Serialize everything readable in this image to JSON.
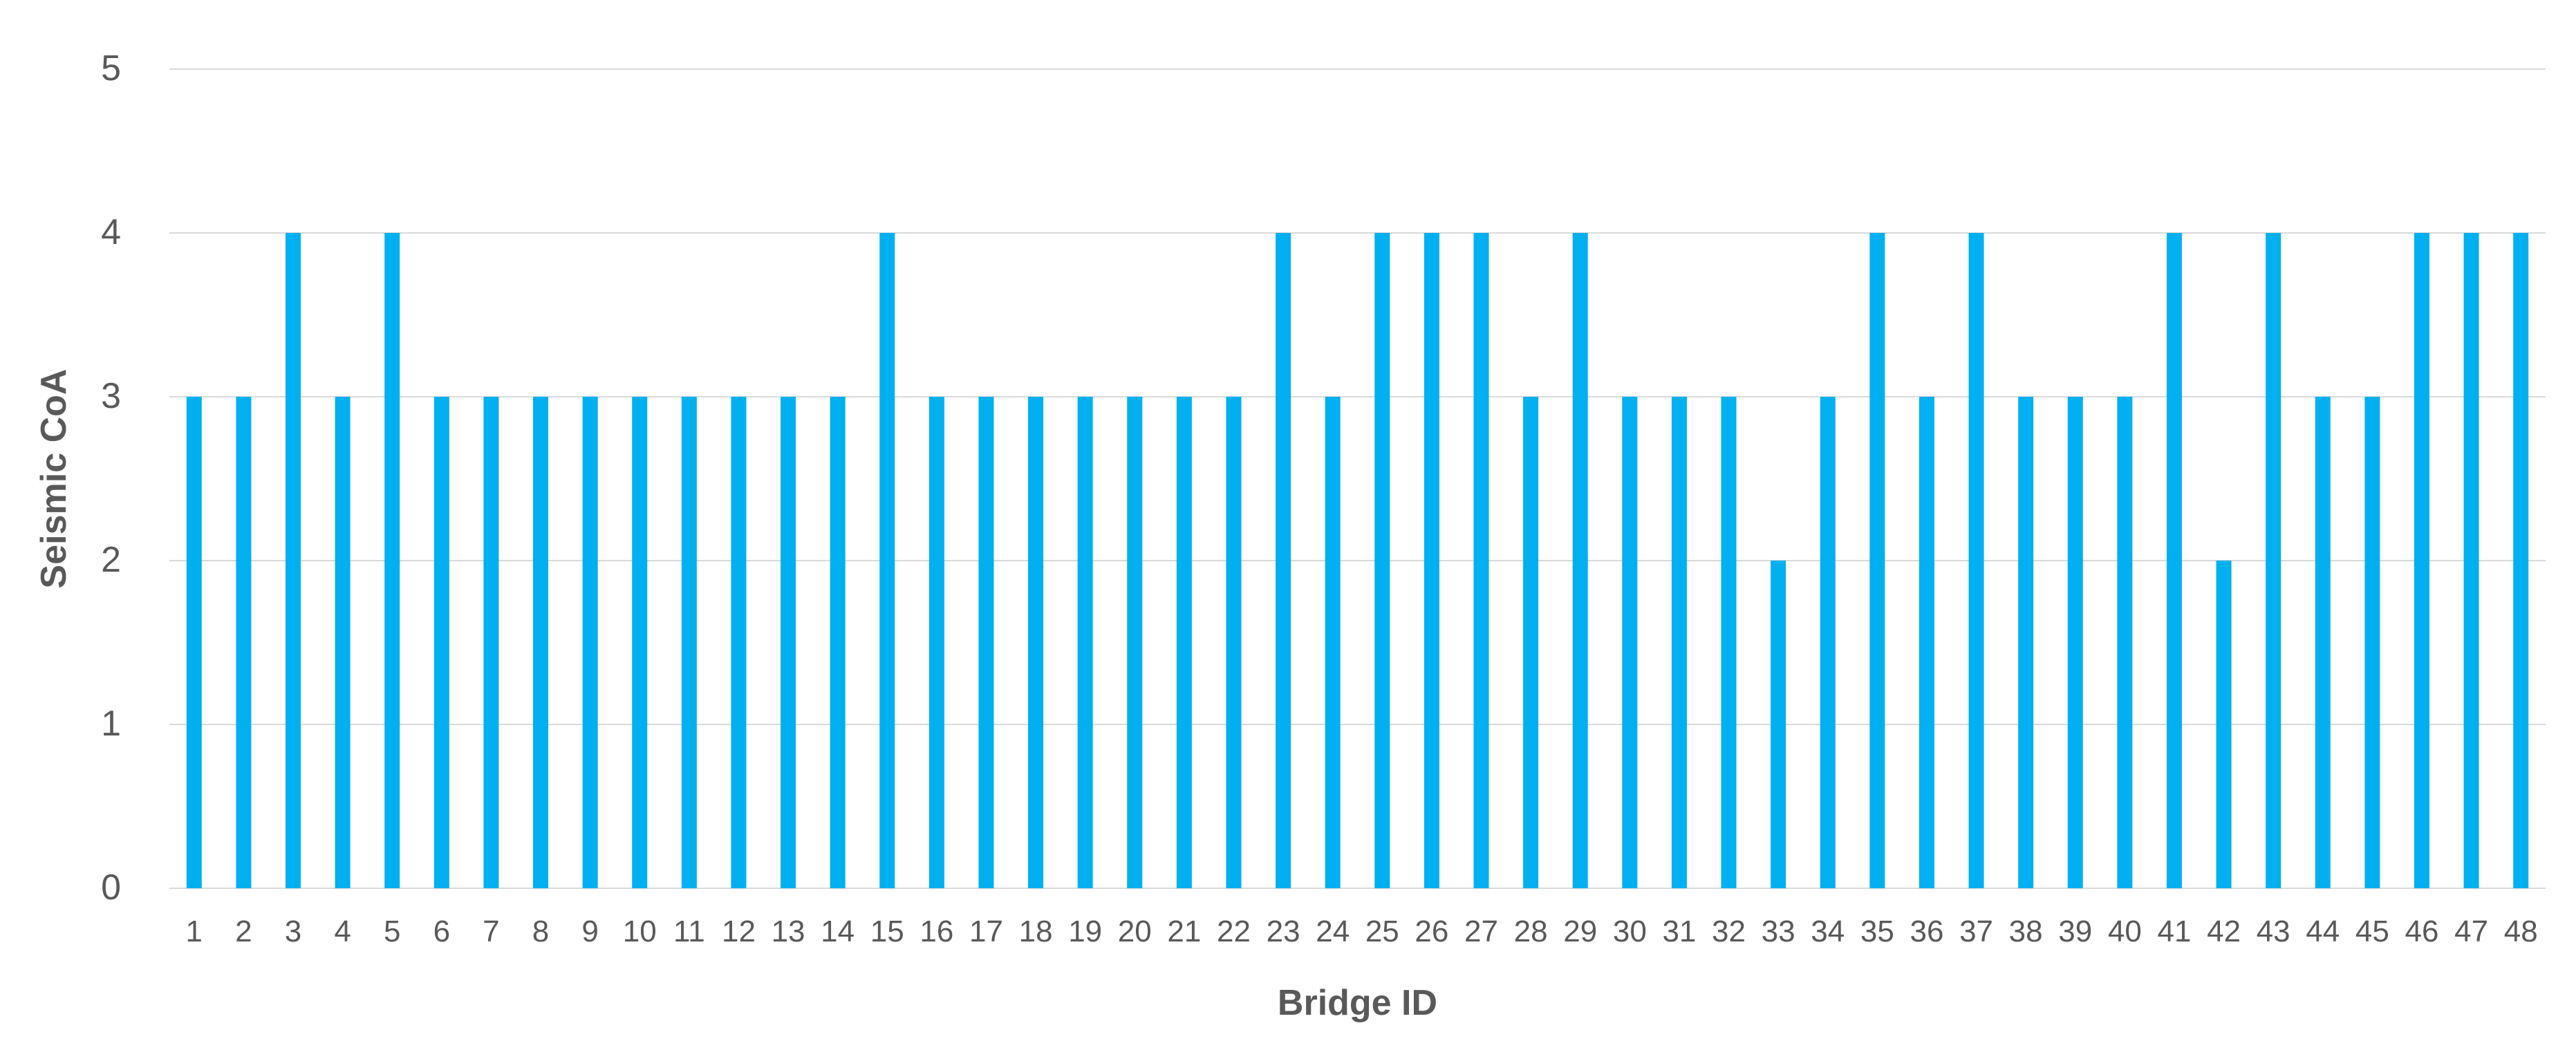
{
  "chart_data": {
    "type": "bar",
    "title": "",
    "xlabel": "Bridge ID",
    "ylabel": "Seismic CoA",
    "categories": [
      "1",
      "2",
      "3",
      "4",
      "5",
      "6",
      "7",
      "8",
      "9",
      "10",
      "11",
      "12",
      "13",
      "14",
      "15",
      "16",
      "17",
      "18",
      "19",
      "20",
      "21",
      "22",
      "23",
      "24",
      "25",
      "26",
      "27",
      "28",
      "29",
      "30",
      "31",
      "32",
      "33",
      "34",
      "35",
      "36",
      "37",
      "38",
      "39",
      "40",
      "41",
      "42",
      "43",
      "44",
      "45",
      "46",
      "47",
      "48"
    ],
    "values": [
      3,
      3,
      4,
      3,
      4,
      3,
      3,
      3,
      3,
      3,
      3,
      3,
      3,
      3,
      4,
      3,
      3,
      3,
      3,
      3,
      3,
      3,
      4,
      3,
      4,
      4,
      4,
      3,
      4,
      3,
      3,
      3,
      2,
      3,
      4,
      3,
      4,
      3,
      3,
      3,
      4,
      2,
      4,
      3,
      3,
      4,
      4,
      4
    ],
    "ylim": [
      0,
      5
    ],
    "yticks": [
      0,
      1,
      2,
      3,
      4,
      5
    ],
    "grid": true,
    "legend": "none",
    "bar_color": "#00B0F0",
    "grid_color": "#D9D9D9",
    "text_color": "#595959"
  }
}
